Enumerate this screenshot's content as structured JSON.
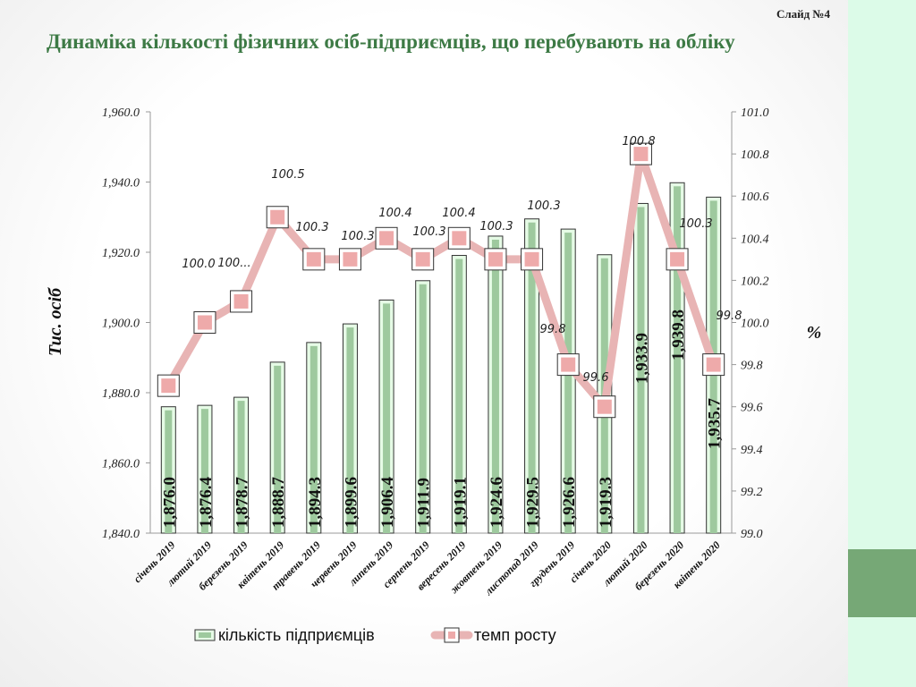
{
  "slide_number": "Слайд №4",
  "title": "Динаміка кількості фізичних осіб-підприємців, що перебувають на обліку",
  "chart_data": {
    "type": "bar+line",
    "categories": [
      "січень 2019",
      "лютий 2019",
      "березень 2019",
      "квітень 2019",
      "травень 2019",
      "червень 2019",
      "липень 2019",
      "серпень 2019",
      "вересень 2019",
      "жовтень 2019",
      "листопад 2019",
      "грудень 2019",
      "січень 2020",
      "лютий 2020",
      "березень 2020",
      "квітень 2020"
    ],
    "series": [
      {
        "name": "кількість підприємців",
        "axis": "left",
        "type": "bar",
        "values": [
          1876.0,
          1876.4,
          1878.7,
          1888.7,
          1894.3,
          1899.6,
          1906.4,
          1911.9,
          1919.1,
          1924.6,
          1929.5,
          1926.6,
          1919.3,
          1933.9,
          1939.8,
          1935.7
        ],
        "labels": [
          "1,876.0",
          "1,876.4",
          "1,878.7",
          "1,888.7",
          "1,894.3",
          "1,899.6",
          "1,906.4",
          "1,911.9",
          "1,919.1",
          "1,924.6",
          "1,929.5",
          "1,926.6",
          "1,919.3",
          "1,933.9",
          "1,939.8",
          "1,935.7"
        ]
      },
      {
        "name": "темп росту",
        "axis": "right",
        "type": "line",
        "values": [
          99.7,
          100.0,
          100.1,
          100.5,
          100.3,
          100.3,
          100.4,
          100.3,
          100.4,
          100.3,
          100.3,
          99.8,
          99.6,
          100.8,
          100.3,
          99.8
        ],
        "labels": [
          "",
          "100.0",
          "100...",
          "100.5",
          "100.3",
          "100.3",
          "100.4",
          "100.3",
          "100.4",
          "100.3",
          "100.3",
          "99.8",
          "99.6",
          "100.8",
          "100.3",
          "99.8"
        ]
      }
    ],
    "ylabel": "Тис. осіб",
    "y2label": "%",
    "ylim": [
      1840,
      1960
    ],
    "y2lim": [
      99.0,
      101.0
    ],
    "yticks": [
      "1,840.0",
      "1,860.0",
      "1,880.0",
      "1,900.0",
      "1,920.0",
      "1,940.0",
      "1,960.0"
    ],
    "y2ticks": [
      "99.0",
      "99.2",
      "99.4",
      "99.6",
      "99.8",
      "100.0",
      "100.2",
      "100.4",
      "100.6",
      "100.8",
      "101.0"
    ],
    "legend": "bottom",
    "colors": {
      "bar": "#9ec99e",
      "bar_edge": "#222222",
      "line": "#e8b4b4",
      "marker": "#eeaaaa"
    }
  }
}
